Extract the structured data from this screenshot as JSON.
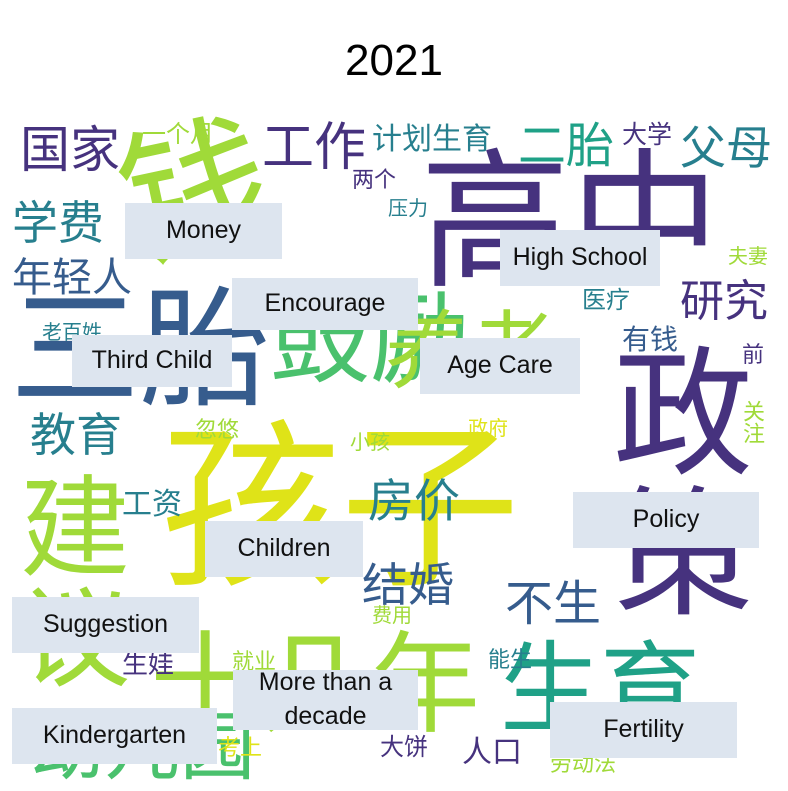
{
  "title": "2021",
  "colors": {
    "purple": "#46327e",
    "indigo": "#365c8d",
    "blue": "#277f8e",
    "teal": "#1fa187",
    "green": "#4ac16d",
    "lime": "#a0da39",
    "yellow": "#dfe318"
  },
  "words": {
    "w1": "国家",
    "w2": "工作",
    "w3": "计划生育",
    "w4": "二胎",
    "w5": "大学",
    "w6": "父母",
    "w7": "一个月",
    "w8": "钱",
    "w9": "学费",
    "w10": "两个",
    "w11": "高中",
    "w12": "压力",
    "w13": "夫妻",
    "w14": "年轻人",
    "w15": "医疗",
    "w16": "研究",
    "w17": "老百姓",
    "w18": "有钱",
    "w19": "前",
    "w20": "三胎",
    "w21": "鼓励",
    "w22": "养老",
    "w23": "教育",
    "w24": "忽悠",
    "w25": "政府",
    "w26": "小孩",
    "w27": "关注",
    "w28": "政策",
    "w29": "孩子",
    "w30": "房价",
    "w31": "工资",
    "w32": "建议",
    "w33": "结婚",
    "w34": "不生",
    "w35": "费用",
    "w36": "生娃",
    "w37": "就业",
    "w38": "能生",
    "w39": "十几年",
    "w40": "生育",
    "w41": "幼儿园",
    "w42": "考上",
    "w43": "大饼",
    "w44": "人口",
    "w45": "劳动法"
  },
  "labels": {
    "money": "Money",
    "high_school": "High School",
    "encourage": "Encourage",
    "third_child": "Third Child",
    "age_care": "Age Care",
    "policy": "Policy",
    "children": "Children",
    "suggestion": "Suggestion",
    "more_than_decade": "More than a decade",
    "kindergarten": "Kindergarten",
    "fertility": "Fertility"
  }
}
